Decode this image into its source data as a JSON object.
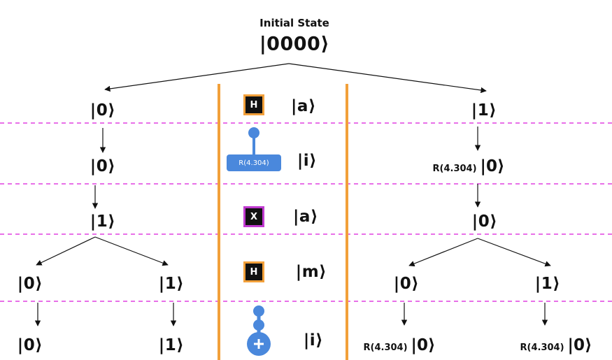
{
  "header": {
    "title": "Initial State",
    "state": "|0000⟩"
  },
  "steps": [
    {
      "gate": "H",
      "qubit": "|a⟩"
    },
    {
      "gate": "R(4.304)",
      "qubit": "|i⟩"
    },
    {
      "gate": "X",
      "qubit": "|a⟩"
    },
    {
      "gate": "H",
      "qubit": "|m⟩"
    },
    {
      "gate": "CNOT",
      "qubit": "|i⟩"
    }
  ],
  "left_branch": {
    "l1": "|0⟩",
    "l2": "|0⟩",
    "l3": "|1⟩",
    "l4": [
      "|0⟩",
      "|1⟩"
    ],
    "l5": [
      "|0⟩",
      "|1⟩"
    ]
  },
  "right_branch": {
    "l1": "|1⟩",
    "l2_prefix": "R(4.304)",
    "l2": "|0⟩",
    "l3": "|0⟩",
    "l4": [
      "|0⟩",
      "|1⟩"
    ],
    "l5_prefix": [
      "R(4.304)",
      "R(4.304)"
    ],
    "l5": [
      "|0⟩",
      "|0⟩"
    ]
  },
  "colors": {
    "separator": "#e040e0",
    "divider": "#f2a03a",
    "hadamard_border": "#f2a03a",
    "x_border": "#c03ad0",
    "control_blue": "#4a88dc"
  }
}
